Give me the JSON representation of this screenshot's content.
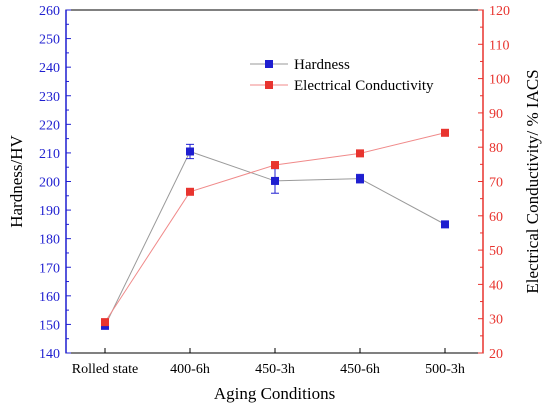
{
  "chart_data": {
    "type": "line",
    "categories": [
      "Rolled state",
      "400-6h",
      "450-3h",
      "450-6h",
      "500-3h"
    ],
    "xlabel": "Aging Conditions",
    "y_left": {
      "label": "Hardness/HV",
      "range": [
        140,
        260
      ],
      "step": 10,
      "color": "#1f1fd0"
    },
    "y_right": {
      "label": "Electrical Conductivity/ % IACS",
      "range": [
        20,
        120
      ],
      "step": 10,
      "color": "#e8342f"
    },
    "legend_position": "top-right",
    "series": [
      {
        "name": "Hardness",
        "axis": "left",
        "color": "#1f1fd0",
        "line_color": "#9a9a9a",
        "marker": "square",
        "values": [
          149.5,
          210.5,
          200.2,
          201.0,
          185.0
        ],
        "error": [
          0,
          2.5,
          4.3,
          1.5,
          1.0
        ]
      },
      {
        "name": "Electrical Conductivity",
        "axis": "right",
        "color": "#e8342f",
        "line_color": "#f08a8a",
        "marker": "square",
        "values": [
          29,
          67,
          74.8,
          78.2,
          84.2
        ],
        "error": [
          0,
          0,
          0,
          0,
          0
        ]
      }
    ]
  }
}
